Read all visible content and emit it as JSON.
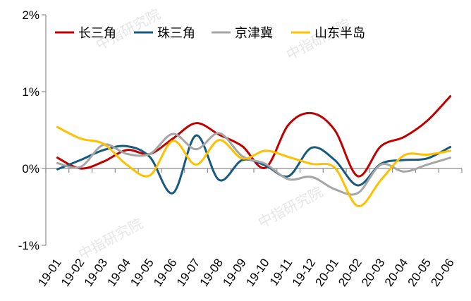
{
  "chart_data": {
    "type": "line",
    "title": "",
    "xlabel": "",
    "ylabel": "",
    "ylim": [
      -0.01,
      0.02
    ],
    "yticks": [
      "2%",
      "1%",
      "0%",
      "-1%"
    ],
    "ytick_values": [
      0.02,
      0.01,
      0.0,
      -0.01
    ],
    "grid": false,
    "legend_position": "top-left inside",
    "categories": [
      "19-01",
      "19-02",
      "19-03",
      "19-04",
      "19-05",
      "19-06",
      "19-07",
      "19-08",
      "19-09",
      "19-10",
      "19-11",
      "19-12",
      "20-01",
      "20-02",
      "20-03",
      "20-04",
      "20-05",
      "20-06"
    ],
    "series": [
      {
        "name": "长三角",
        "color": "#c00000",
        "values": [
          0.14,
          0.0,
          0.09,
          0.24,
          0.19,
          0.39,
          0.59,
          0.44,
          0.29,
          0.01,
          0.57,
          0.72,
          0.5,
          -0.1,
          0.29,
          0.41,
          0.62,
          0.94
        ]
      },
      {
        "name": "珠三角",
        "color": "#175a7d",
        "values": [
          -0.01,
          0.11,
          0.24,
          0.29,
          0.15,
          -0.32,
          0.43,
          -0.15,
          0.11,
          0.04,
          -0.1,
          0.27,
          0.11,
          -0.22,
          0.06,
          0.11,
          0.13,
          0.28
        ]
      },
      {
        "name": "京津冀",
        "color": "#a6a6a6",
        "values": [
          0.07,
          0.02,
          0.31,
          0.19,
          0.19,
          0.45,
          0.25,
          0.46,
          0.16,
          0.06,
          -0.14,
          -0.11,
          -0.27,
          -0.32,
          0.05,
          -0.04,
          0.05,
          0.14
        ]
      },
      {
        "name": "山东半岛",
        "color": "#ffc000",
        "values": [
          0.54,
          0.39,
          0.32,
          0.05,
          -0.09,
          0.36,
          0.05,
          0.37,
          0.13,
          0.23,
          0.15,
          0.06,
          0.01,
          -0.49,
          -0.15,
          0.17,
          0.18,
          0.23
        ]
      }
    ],
    "value_unit": "percent",
    "annotations": [
      "中指研究院 (watermark)"
    ]
  },
  "watermark": "中指研究院",
  "legend": [
    {
      "label": "长三角",
      "color": "#c00000"
    },
    {
      "label": "珠三角",
      "color": "#175a7d"
    },
    {
      "label": "京津冀",
      "color": "#a6a6a6"
    },
    {
      "label": "山东半岛",
      "color": "#ffc000"
    }
  ]
}
